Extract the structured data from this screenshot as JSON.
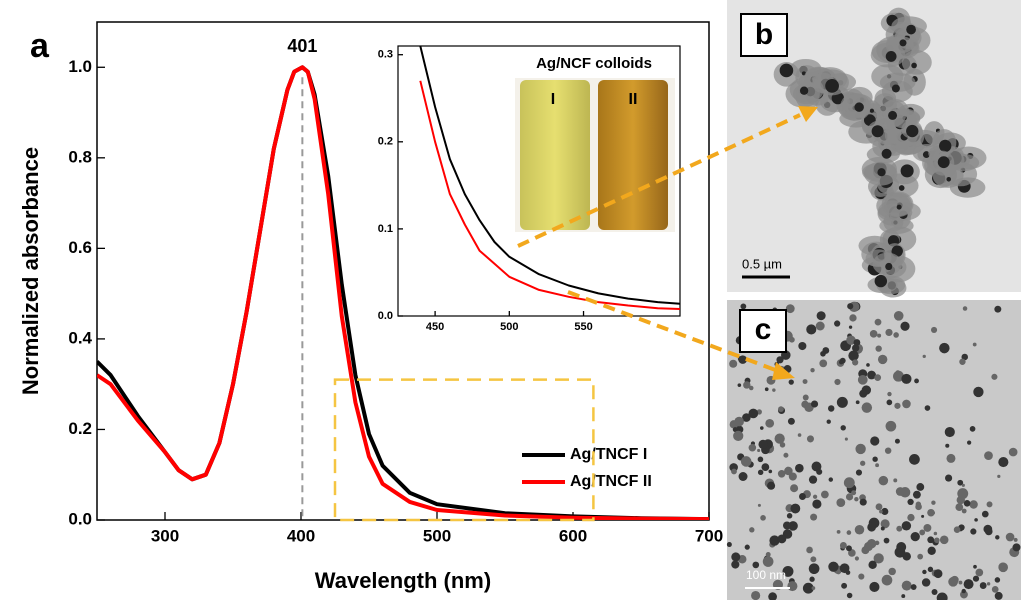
{
  "chart_data": [
    {
      "type": "line",
      "panel_label": "a",
      "xlabel": "Wavelength (nm)",
      "ylabel": "Normalized absorbance",
      "annotation": {
        "x": 401,
        "text": "401"
      },
      "xlim": [
        250,
        700
      ],
      "xticks": [
        300,
        400,
        500,
        600,
        700
      ],
      "ylim": [
        0,
        1.1
      ],
      "yticks": [
        {
          "value": 0,
          "label": "0.0"
        },
        {
          "value": 0.2,
          "label": "0.2"
        },
        {
          "value": 0.4,
          "label": "0.4"
        },
        {
          "value": 0.6,
          "label": "0.6"
        },
        {
          "value": 0.8,
          "label": "0.8"
        },
        {
          "value": 1,
          "label": "1.0"
        }
      ],
      "legend": "lower right",
      "x": [
        250,
        260,
        280,
        300,
        310,
        320,
        330,
        340,
        350,
        360,
        370,
        380,
        390,
        395,
        401,
        405,
        410,
        420,
        430,
        440,
        450,
        460,
        480,
        500,
        550,
        600,
        650,
        700
      ],
      "series": [
        {
          "name": "Ag/TNCF I",
          "color": "#000000",
          "values": [
            0.35,
            0.32,
            0.23,
            0.15,
            0.11,
            0.09,
            0.1,
            0.17,
            0.3,
            0.46,
            0.64,
            0.82,
            0.95,
            0.99,
            1.0,
            0.99,
            0.94,
            0.76,
            0.52,
            0.32,
            0.19,
            0.12,
            0.06,
            0.035,
            0.015,
            0.008,
            0.004,
            0.002
          ]
        },
        {
          "name": "Ag/TNCF II",
          "color": "#ff0000",
          "values": [
            0.32,
            0.3,
            0.22,
            0.15,
            0.11,
            0.09,
            0.1,
            0.17,
            0.3,
            0.46,
            0.64,
            0.82,
            0.95,
            0.99,
            1.0,
            0.99,
            0.93,
            0.72,
            0.45,
            0.26,
            0.14,
            0.08,
            0.04,
            0.022,
            0.01,
            0.005,
            0.003,
            0.002
          ]
        }
      ]
    },
    {
      "type": "line",
      "inset_title": "Ag/NCF colloids",
      "photo_labels": [
        "I",
        "II"
      ],
      "xlim": [
        425,
        615
      ],
      "xticks": [
        450,
        500,
        550
      ],
      "ylim": [
        0,
        0.31
      ],
      "yticks": [
        {
          "value": 0,
          "label": "0.0"
        },
        {
          "value": 0.1,
          "label": "0.1"
        },
        {
          "value": 0.2,
          "label": "0.2"
        },
        {
          "value": 0.3,
          "label": "0.3"
        }
      ],
      "x": [
        440,
        450,
        460,
        470,
        480,
        490,
        500,
        520,
        540,
        560,
        580,
        600,
        615
      ],
      "series": [
        {
          "name": "Ag/TNCF I",
          "color": "#000000",
          "values": [
            0.31,
            0.24,
            0.18,
            0.14,
            0.11,
            0.085,
            0.068,
            0.048,
            0.035,
            0.026,
            0.02,
            0.016,
            0.014
          ]
        },
        {
          "name": "Ag/TNCF II",
          "color": "#ff0000",
          "values": [
            0.27,
            0.2,
            0.14,
            0.105,
            0.075,
            0.06,
            0.045,
            0.03,
            0.022,
            0.016,
            0.012,
            0.009,
            0.008
          ]
        }
      ]
    }
  ],
  "panels": [
    {
      "label": "b",
      "scale_bar": "0.5 µm"
    },
    {
      "label": "c",
      "scale_bar": "100 nm"
    }
  ]
}
